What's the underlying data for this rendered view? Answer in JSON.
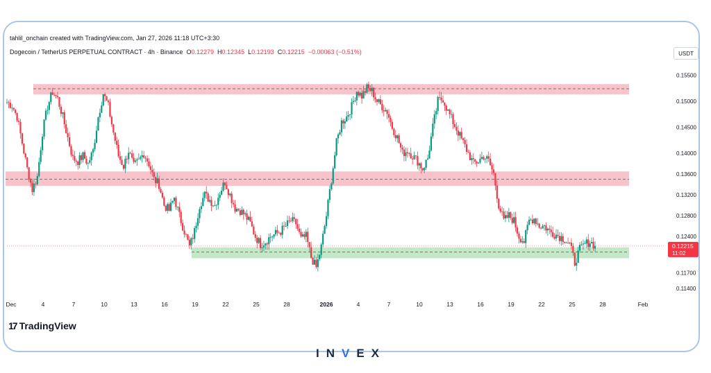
{
  "header": {
    "credit": "tahlil_onchain created with TradingView.com, Jan 27, 2026 11:18 UTC+3:30",
    "symbol": "Dogecoin / TetherUS PERPETUAL CONTRACT · 4h · Binance",
    "ohlc": {
      "o_label": "O",
      "o": "0.12279",
      "h_label": "H",
      "h": "0.12345",
      "l_label": "L",
      "l": "0.12193",
      "c_label": "C",
      "c": "0.12215",
      "change": "−0.00063 (−0.51%)"
    }
  },
  "currency_label": "USDT",
  "price_tag": {
    "price": "0.12215",
    "countdown": "11:02"
  },
  "branding": {
    "tradingview": "TradingView",
    "footer_prefix": "IN",
    "footer_mid": "V",
    "footer_suffix": "EX"
  },
  "colors": {
    "up": "#089981",
    "down": "#f23645",
    "resistance_zone": "#f7b9c1",
    "support_zone": "#b9e3bd",
    "price_tag": "#f23645"
  },
  "chart_data": {
    "type": "candlestick",
    "timeframe": "4h",
    "ylim": [
      0.1128,
      0.1572
    ],
    "y_ticks": [
      "0.15500",
      "0.15000",
      "0.14500",
      "0.14000",
      "0.13600",
      "0.13200",
      "0.12800",
      "0.12400",
      "0.11700",
      "0.11400"
    ],
    "x_ticks": [
      "Dec",
      "4",
      "7",
      "10",
      "13",
      "16",
      "19",
      "22",
      "25",
      "28",
      "2026",
      "4",
      "7",
      "10",
      "13",
      "16",
      "19",
      "22",
      "25",
      "28",
      "Feb"
    ],
    "zones": [
      {
        "kind": "resistance",
        "from": 0.1513,
        "to": 0.1533,
        "mid": 0.1524
      },
      {
        "kind": "resistance",
        "from": 0.1337,
        "to": 0.1365,
        "mid": 0.135
      },
      {
        "kind": "support",
        "from": 0.1198,
        "to": 0.1219,
        "mid": 0.121
      }
    ],
    "current_price": 0.12215,
    "price_path": [
      0.1498,
      0.1492,
      0.147,
      0.142,
      0.137,
      0.133,
      0.1355,
      0.144,
      0.149,
      0.1518,
      0.1505,
      0.147,
      0.143,
      0.139,
      0.1385,
      0.1395,
      0.138,
      0.1405,
      0.147,
      0.1515,
      0.149,
      0.144,
      0.1395,
      0.1375,
      0.1405,
      0.1375,
      0.1385,
      0.14,
      0.138,
      0.135,
      0.134,
      0.13,
      0.129,
      0.1315,
      0.128,
      0.125,
      0.122,
      0.125,
      0.13,
      0.132,
      0.131,
      0.13,
      0.1325,
      0.1345,
      0.132,
      0.1295,
      0.129,
      0.128,
      0.1265,
      0.124,
      0.1225,
      0.123,
      0.124,
      0.1245,
      0.125,
      0.126,
      0.127,
      0.1265,
      0.1235,
      0.124,
      0.12,
      0.118,
      0.122,
      0.128,
      0.135,
      0.142,
      0.146,
      0.147,
      0.149,
      0.152,
      0.151,
      0.1525,
      0.152,
      0.15,
      0.149,
      0.148,
      0.145,
      0.143,
      0.14,
      0.1405,
      0.1395,
      0.1385,
      0.137,
      0.139,
      0.145,
      0.15,
      0.1505,
      0.148,
      0.146,
      0.144,
      0.142,
      0.14,
      0.138,
      0.1385,
      0.1395,
      0.1385,
      0.136,
      0.13,
      0.127,
      0.128,
      0.127,
      0.124,
      0.123,
      0.127,
      0.1275,
      0.126,
      0.126,
      0.125,
      0.1245,
      0.124,
      0.1235,
      0.1225,
      0.119,
      0.1215,
      0.1225,
      0.123,
      0.1222
    ]
  }
}
